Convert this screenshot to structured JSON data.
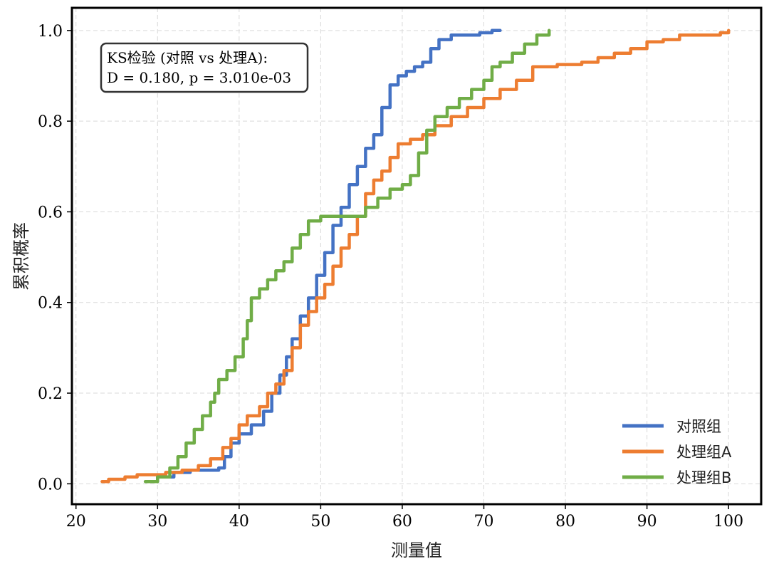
{
  "chart_data": {
    "type": "line",
    "subtype": "empirical-cdf",
    "title": "",
    "xlabel": "测量值",
    "ylabel": "累积概率",
    "xlim": [
      19.5,
      104
    ],
    "ylim": [
      -0.045,
      1.05
    ],
    "xticks": [
      20,
      30,
      40,
      50,
      60,
      70,
      80,
      90,
      100
    ],
    "yticks": [
      0.0,
      0.2,
      0.4,
      0.6,
      0.8,
      1.0
    ],
    "xtick_labels": [
      "20",
      "30",
      "40",
      "50",
      "60",
      "70",
      "80",
      "90",
      "100"
    ],
    "ytick_labels": [
      "0.0",
      "0.2",
      "0.4",
      "0.6",
      "0.8",
      "1.0"
    ],
    "grid": true,
    "legend_position": "bottom-right",
    "annotation": {
      "line1": "KS检验 (对照 vs 处理A):",
      "line2": "D = 0.180, p = 3.010e-03"
    },
    "series": [
      {
        "name": "对照组",
        "color": "#4472c4",
        "x": [
          29.0,
          30.0,
          32.0,
          34.0,
          36.0,
          37.5,
          38.2,
          39.0,
          40.0,
          41.5,
          43.0,
          44.0,
          45.0,
          45.8,
          46.5,
          47.5,
          48.5,
          49.5,
          50.5,
          51.5,
          52.5,
          53.5,
          54.5,
          55.5,
          56.5,
          57.5,
          58.5,
          59.5,
          60.5,
          61.5,
          62.5,
          63.5,
          64.5,
          66.0,
          68.0,
          69.5,
          71.0,
          72.0
        ],
        "y": [
          0.005,
          0.015,
          0.025,
          0.03,
          0.03,
          0.035,
          0.06,
          0.09,
          0.11,
          0.13,
          0.16,
          0.2,
          0.24,
          0.28,
          0.32,
          0.37,
          0.41,
          0.46,
          0.51,
          0.57,
          0.61,
          0.66,
          0.7,
          0.74,
          0.77,
          0.83,
          0.88,
          0.9,
          0.91,
          0.92,
          0.93,
          0.96,
          0.98,
          0.99,
          0.99,
          0.995,
          1.0,
          1.0
        ]
      },
      {
        "name": "处理组A",
        "color": "#ed7d31",
        "x": [
          23.2,
          24.0,
          26.0,
          27.5,
          29.0,
          31.0,
          33.0,
          35.0,
          36.5,
          38.0,
          39.0,
          40.0,
          41.0,
          42.5,
          43.5,
          44.5,
          45.5,
          46.5,
          47.5,
          48.5,
          49.5,
          50.5,
          51.5,
          52.5,
          53.5,
          54.5,
          55.5,
          56.5,
          57.5,
          58.5,
          59.5,
          61.0,
          62.5,
          64.0,
          66.0,
          68.0,
          70.0,
          72.0,
          74.0,
          76.0,
          79.0,
          82.0,
          84.0,
          86.0,
          88.0,
          90.0,
          92.0,
          94.0,
          96.0,
          99.0,
          100.0
        ],
        "y": [
          0.005,
          0.01,
          0.015,
          0.02,
          0.02,
          0.025,
          0.03,
          0.04,
          0.055,
          0.08,
          0.1,
          0.13,
          0.15,
          0.17,
          0.2,
          0.22,
          0.25,
          0.3,
          0.35,
          0.38,
          0.41,
          0.44,
          0.48,
          0.52,
          0.55,
          0.59,
          0.64,
          0.67,
          0.69,
          0.72,
          0.75,
          0.76,
          0.77,
          0.79,
          0.81,
          0.83,
          0.85,
          0.87,
          0.89,
          0.92,
          0.925,
          0.93,
          0.94,
          0.95,
          0.96,
          0.975,
          0.98,
          0.99,
          0.99,
          0.995,
          1.0
        ]
      },
      {
        "name": "处理组B",
        "color": "#70ad47",
        "x": [
          28.5,
          30.0,
          31.5,
          32.5,
          33.5,
          34.5,
          35.5,
          36.5,
          37.0,
          37.5,
          38.5,
          39.5,
          40.5,
          41.0,
          41.5,
          42.5,
          43.5,
          44.5,
          45.5,
          46.5,
          47.5,
          48.5,
          50.0,
          52.0,
          54.0,
          55.5,
          57.0,
          58.5,
          60.0,
          61.0,
          62.0,
          63.0,
          64.0,
          65.5,
          67.0,
          68.5,
          70.0,
          71.0,
          72.0,
          73.5,
          75.0,
          76.5,
          78.0
        ],
        "y": [
          0.005,
          0.015,
          0.035,
          0.06,
          0.09,
          0.12,
          0.15,
          0.18,
          0.2,
          0.23,
          0.25,
          0.28,
          0.32,
          0.36,
          0.41,
          0.43,
          0.45,
          0.47,
          0.49,
          0.52,
          0.55,
          0.58,
          0.59,
          0.59,
          0.59,
          0.61,
          0.63,
          0.65,
          0.66,
          0.68,
          0.73,
          0.78,
          0.81,
          0.83,
          0.85,
          0.87,
          0.89,
          0.92,
          0.93,
          0.95,
          0.97,
          0.99,
          1.0
        ]
      }
    ]
  }
}
